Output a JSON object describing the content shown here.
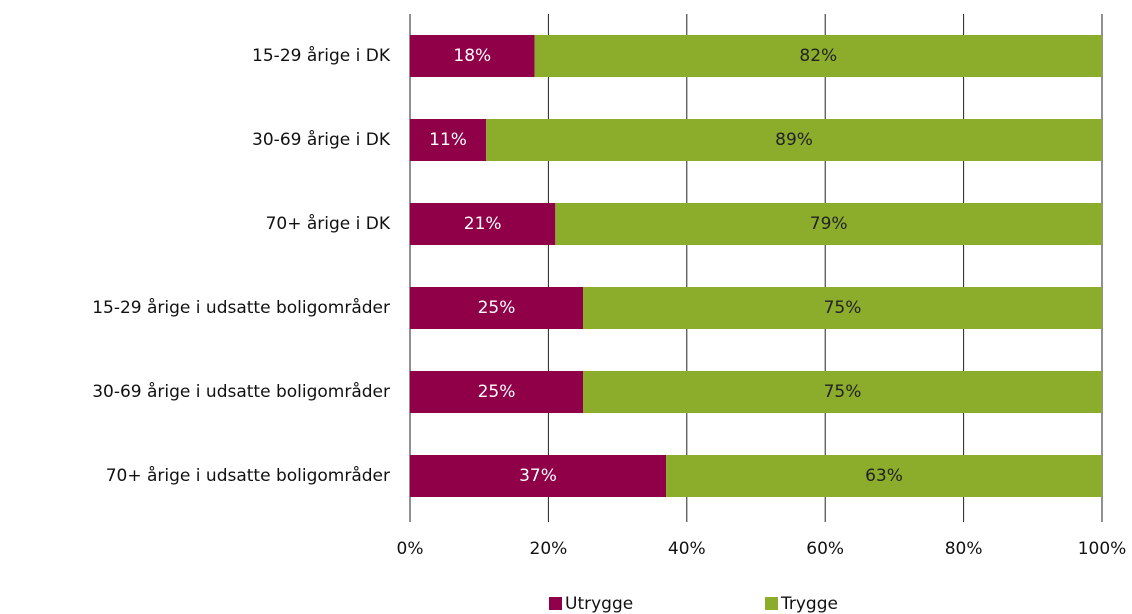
{
  "chart_data": {
    "type": "stacked-bar-horizontal",
    "categories": [
      "15-29 årige i DK",
      "30-69 årige i DK",
      "70+ årige i DK",
      "15-29 årige i udsatte boligområder",
      "30-69 årige i udsatte boligområder",
      "70+ årige i udsatte boligområder"
    ],
    "series": [
      {
        "name": "Utrygge",
        "color": "#8f0048",
        "label_color": "#ffffff",
        "values": [
          18,
          11,
          21,
          25,
          25,
          37
        ],
        "value_labels": [
          "18%",
          "11%",
          "21%",
          "25%",
          "25%",
          "37%"
        ]
      },
      {
        "name": "Trygge",
        "color": "#8cad2b",
        "label_color": "#222222",
        "values": [
          82,
          89,
          79,
          75,
          75,
          63
        ],
        "value_labels": [
          "82%",
          "89%",
          "79%",
          "75%",
          "75%",
          "63%"
        ]
      }
    ],
    "xlim": [
      0,
      100
    ],
    "xticks": [
      {
        "value": 0,
        "label": "0%"
      },
      {
        "value": 20,
        "label": "20%"
      },
      {
        "value": 40,
        "label": "40%"
      },
      {
        "value": 60,
        "label": "60%"
      },
      {
        "value": 80,
        "label": "80%"
      },
      {
        "value": 100,
        "label": "100%"
      }
    ],
    "grid": true,
    "legend": "bottom"
  }
}
